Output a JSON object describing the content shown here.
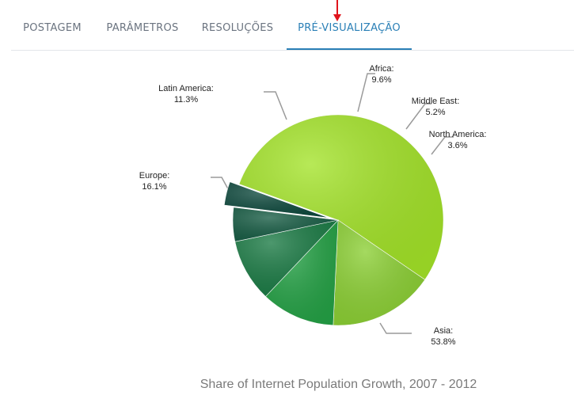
{
  "tabs": [
    {
      "label": "POSTAGEM",
      "active": false
    },
    {
      "label": "PARÂMETROS",
      "active": false
    },
    {
      "label": "RESOLUÇÕES",
      "active": false
    },
    {
      "label": "PRÉ-VISUALIZAÇÃO",
      "active": true
    }
  ],
  "colors": {
    "tab_active": "#2a7fb6",
    "tab_inactive": "#6b7480",
    "pointer_arrow": "#e0141c"
  },
  "chart_data": {
    "type": "pie",
    "title": "Share of Internet Population Growth, 2007 - 2012",
    "slices": [
      {
        "label": "Asia",
        "value": 53.8,
        "color": "#a3e328",
        "exploded": false
      },
      {
        "label": "Europe",
        "value": 16.1,
        "color": "#8bcf33",
        "exploded": false
      },
      {
        "label": "Latin America",
        "value": 11.3,
        "color": "#24a145",
        "exploded": false
      },
      {
        "label": "Africa",
        "value": 9.6,
        "color": "#1a7a44",
        "exploded": false
      },
      {
        "label": "Middle East",
        "value": 5.2,
        "color": "#175c44",
        "exploded": false
      },
      {
        "label": "North America",
        "value": 3.6,
        "color": "#0f4a3e",
        "exploded": true
      }
    ],
    "label_format": "{label}:\n{value}%"
  }
}
